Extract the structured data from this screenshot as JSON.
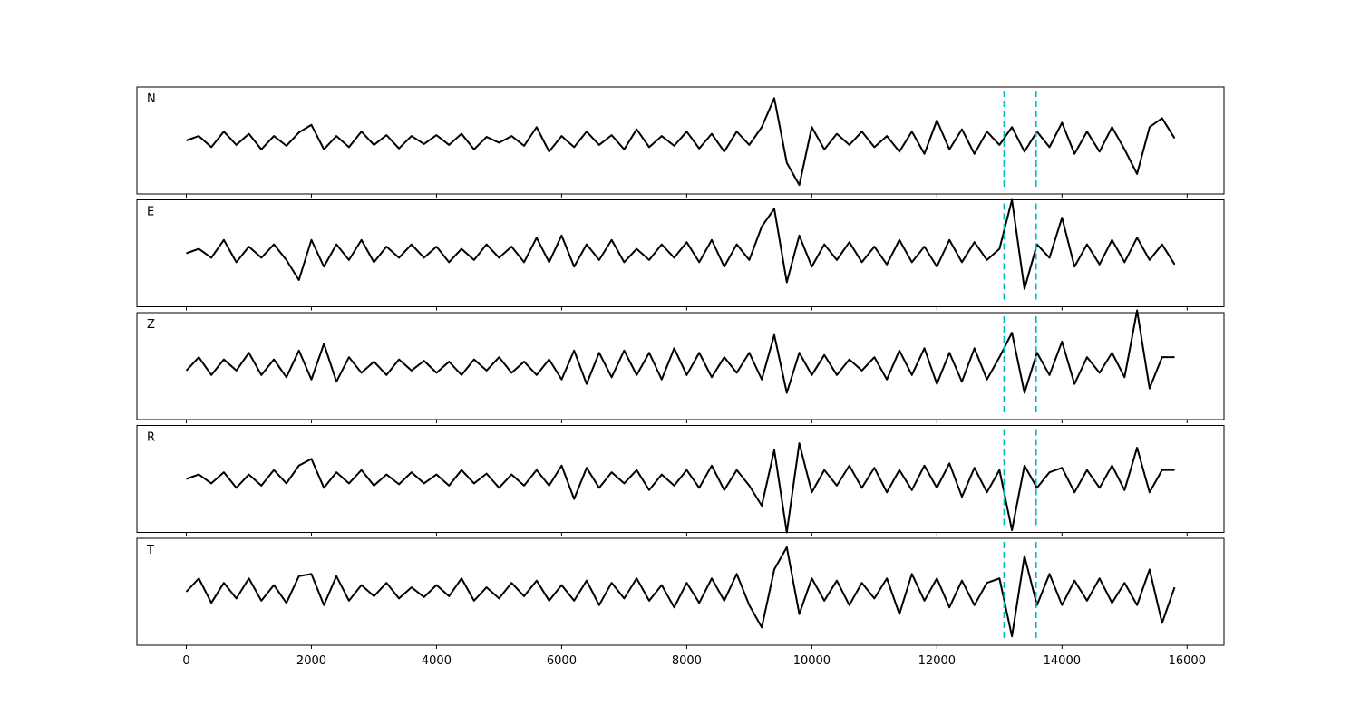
{
  "chart_data": {
    "type": "line",
    "subplots": true,
    "xlim": [
      -790,
      16590
    ],
    "xticks": [
      0,
      2000,
      4000,
      6000,
      8000,
      10000,
      12000,
      14000,
      16000
    ],
    "ylim": [
      -1.2,
      1.2
    ],
    "vlines": [
      13080,
      13580
    ],
    "vline_color": "#00bfbf",
    "x": [
      0,
      200,
      400,
      600,
      800,
      1000,
      1200,
      1400,
      1600,
      1800,
      2000,
      2200,
      2400,
      2600,
      2800,
      3000,
      3200,
      3400,
      3600,
      3800,
      4000,
      4200,
      4400,
      4600,
      4800,
      5000,
      5200,
      5400,
      5600,
      5800,
      6000,
      6200,
      6400,
      6600,
      6800,
      7000,
      7200,
      7400,
      7600,
      7800,
      8000,
      8200,
      8400,
      8600,
      8800,
      9000,
      9200,
      9400,
      9600,
      9800,
      10000,
      10200,
      10400,
      10600,
      10800,
      11000,
      11200,
      11400,
      11600,
      11800,
      12000,
      12200,
      12400,
      12600,
      12800,
      13000,
      13200,
      13400,
      13600,
      13800,
      14000,
      14200,
      14400,
      14600,
      14800,
      15000,
      15200,
      15400,
      15600,
      15800
    ],
    "series": [
      {
        "name": "N",
        "color": "#000000",
        "values": [
          0,
          0.1,
          -0.15,
          0.2,
          -0.1,
          0.15,
          -0.2,
          0.1,
          -0.12,
          0.18,
          0.35,
          -0.2,
          0.1,
          -0.15,
          0.2,
          -0.1,
          0.12,
          -0.18,
          0.1,
          -0.08,
          0.12,
          -0.1,
          0.15,
          -0.2,
          0.08,
          -0.05,
          0.1,
          -0.12,
          0.3,
          -0.25,
          0.1,
          -0.15,
          0.2,
          -0.1,
          0.12,
          -0.2,
          0.25,
          -0.15,
          0.1,
          -0.12,
          0.2,
          -0.18,
          0.15,
          -0.25,
          0.2,
          -0.1,
          0.3,
          0.95,
          -0.5,
          -1.0,
          0.3,
          -0.2,
          0.15,
          -0.1,
          0.2,
          -0.15,
          0.1,
          -0.25,
          0.2,
          -0.3,
          0.45,
          -0.2,
          0.25,
          -0.3,
          0.2,
          -0.1,
          0.3,
          -0.25,
          0.2,
          -0.15,
          0.4,
          -0.3,
          0.2,
          -0.25,
          0.3,
          -0.2,
          -0.75,
          0.3,
          0.5,
          0.05
        ]
      },
      {
        "name": "E",
        "color": "#000000",
        "values": [
          0,
          0.1,
          -0.1,
          0.3,
          -0.2,
          0.15,
          -0.1,
          0.2,
          -0.15,
          -0.6,
          0.3,
          -0.3,
          0.2,
          -0.15,
          0.3,
          -0.2,
          0.15,
          -0.1,
          0.2,
          -0.1,
          0.15,
          -0.2,
          0.1,
          -0.15,
          0.2,
          -0.1,
          0.15,
          -0.2,
          0.35,
          -0.2,
          0.4,
          -0.3,
          0.2,
          -0.15,
          0.3,
          -0.2,
          0.1,
          -0.15,
          0.2,
          -0.1,
          0.25,
          -0.2,
          0.3,
          -0.3,
          0.2,
          -0.15,
          0.6,
          1.0,
          -0.65,
          0.4,
          -0.3,
          0.2,
          -0.15,
          0.25,
          -0.2,
          0.15,
          -0.25,
          0.3,
          -0.2,
          0.15,
          -0.3,
          0.3,
          -0.2,
          0.25,
          -0.15,
          0.1,
          1.2,
          -0.8,
          0.2,
          -0.1,
          0.8,
          -0.3,
          0.2,
          -0.25,
          0.3,
          -0.2,
          0.35,
          -0.15,
          0.2,
          -0.25
        ]
      },
      {
        "name": "Z",
        "color": "#000000",
        "values": [
          -0.1,
          0.2,
          -0.2,
          0.15,
          -0.1,
          0.3,
          -0.2,
          0.15,
          -0.25,
          0.35,
          -0.3,
          0.5,
          -0.35,
          0.2,
          -0.15,
          0.1,
          -0.2,
          0.15,
          -0.1,
          0.12,
          -0.15,
          0.1,
          -0.2,
          0.15,
          -0.1,
          0.2,
          -0.15,
          0.1,
          -0.2,
          0.15,
          -0.3,
          0.35,
          -0.4,
          0.3,
          -0.25,
          0.35,
          -0.2,
          0.3,
          -0.3,
          0.4,
          -0.2,
          0.3,
          -0.25,
          0.2,
          -0.15,
          0.3,
          -0.3,
          0.7,
          -0.6,
          0.3,
          -0.2,
          0.25,
          -0.2,
          0.15,
          -0.1,
          0.2,
          -0.3,
          0.35,
          -0.2,
          0.4,
          -0.4,
          0.3,
          -0.35,
          0.4,
          -0.3,
          0.2,
          0.75,
          -0.6,
          0.3,
          -0.2,
          0.55,
          -0.4,
          0.2,
          -0.15,
          0.3,
          -0.25,
          1.25,
          -0.5,
          0.2,
          0.2
        ]
      },
      {
        "name": "R",
        "color": "#000000",
        "values": [
          0,
          0.1,
          -0.1,
          0.15,
          -0.2,
          0.1,
          -0.15,
          0.2,
          -0.1,
          0.3,
          0.45,
          -0.2,
          0.15,
          -0.1,
          0.2,
          -0.15,
          0.1,
          -0.12,
          0.15,
          -0.1,
          0.1,
          -0.15,
          0.2,
          -0.1,
          0.12,
          -0.2,
          0.1,
          -0.15,
          0.2,
          -0.15,
          0.3,
          -0.45,
          0.25,
          -0.2,
          0.15,
          -0.1,
          0.2,
          -0.25,
          0.1,
          -0.15,
          0.2,
          -0.2,
          0.3,
          -0.25,
          0.2,
          -0.15,
          -0.6,
          0.65,
          -1.2,
          0.8,
          -0.3,
          0.2,
          -0.15,
          0.3,
          -0.2,
          0.25,
          -0.3,
          0.2,
          -0.25,
          0.3,
          -0.2,
          0.35,
          -0.4,
          0.25,
          -0.3,
          0.2,
          -1.15,
          0.3,
          -0.2,
          0.15,
          0.25,
          -0.3,
          0.2,
          -0.2,
          0.3,
          -0.25,
          0.7,
          -0.3,
          0.2,
          0.2
        ]
      },
      {
        "name": "T",
        "color": "#000000",
        "values": [
          0,
          0.3,
          -0.25,
          0.2,
          -0.15,
          0.3,
          -0.2,
          0.15,
          -0.25,
          0.35,
          0.4,
          -0.3,
          0.35,
          -0.2,
          0.15,
          -0.1,
          0.2,
          -0.15,
          0.1,
          -0.12,
          0.15,
          -0.1,
          0.3,
          -0.2,
          0.1,
          -0.15,
          0.2,
          -0.1,
          0.25,
          -0.2,
          0.15,
          -0.2,
          0.25,
          -0.3,
          0.2,
          -0.15,
          0.3,
          -0.2,
          0.15,
          -0.35,
          0.2,
          -0.25,
          0.3,
          -0.2,
          0.4,
          -0.3,
          -0.8,
          0.5,
          1.0,
          -0.5,
          0.3,
          -0.2,
          0.25,
          -0.3,
          0.2,
          -0.15,
          0.3,
          -0.5,
          0.4,
          -0.2,
          0.3,
          -0.35,
          0.25,
          -0.3,
          0.2,
          0.3,
          -1.0,
          0.8,
          -0.3,
          0.4,
          -0.3,
          0.25,
          -0.2,
          0.3,
          -0.25,
          0.2,
          -0.3,
          0.5,
          -0.7,
          0.1
        ]
      }
    ]
  }
}
